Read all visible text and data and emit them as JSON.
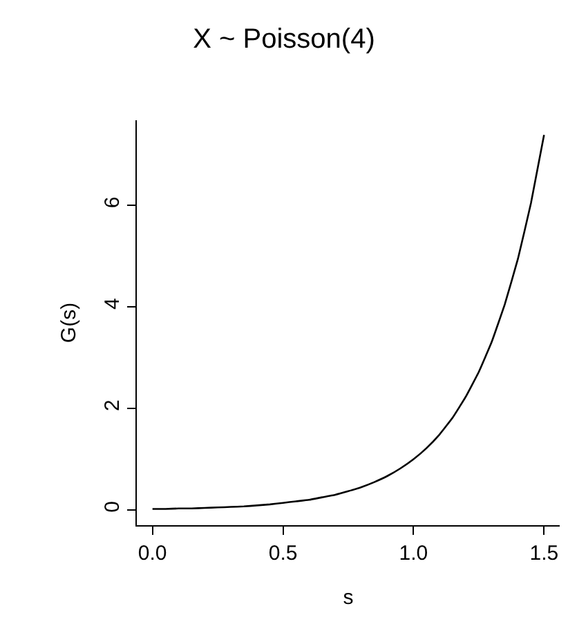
{
  "chart_data": {
    "type": "line",
    "title": "X ~ Poisson(4)",
    "xlabel": "s",
    "ylabel": "G(s)",
    "x": [
      0.0,
      0.05,
      0.1,
      0.15,
      0.2,
      0.25,
      0.3,
      0.35,
      0.4,
      0.45,
      0.5,
      0.55,
      0.6,
      0.65,
      0.7,
      0.75,
      0.8,
      0.85,
      0.9,
      0.95,
      1.0,
      1.05,
      1.1,
      1.15,
      1.2,
      1.25,
      1.3,
      1.35,
      1.4,
      1.45,
      1.5
    ],
    "series": [
      {
        "color": "#000000",
        "values": [
          0.02,
          0.02,
          0.03,
          0.03,
          0.04,
          0.05,
          0.06,
          0.07,
          0.09,
          0.11,
          0.14,
          0.17,
          0.2,
          0.25,
          0.3,
          0.37,
          0.45,
          0.55,
          0.67,
          0.82,
          1.0,
          1.22,
          1.49,
          1.82,
          2.23,
          2.72,
          3.32,
          4.06,
          4.95,
          6.05,
          7.39
        ]
      }
    ],
    "xlim": [
      -0.06,
      1.56
    ],
    "ylim": [
      -0.3,
      7.68
    ],
    "xticks": [
      {
        "value": 0,
        "label": "0.0"
      },
      0.5,
      {
        "value": 1,
        "label": "1.0"
      },
      1.5
    ],
    "yticks": [
      0,
      2,
      4,
      6
    ],
    "line_style": "solid",
    "marker": "none"
  }
}
